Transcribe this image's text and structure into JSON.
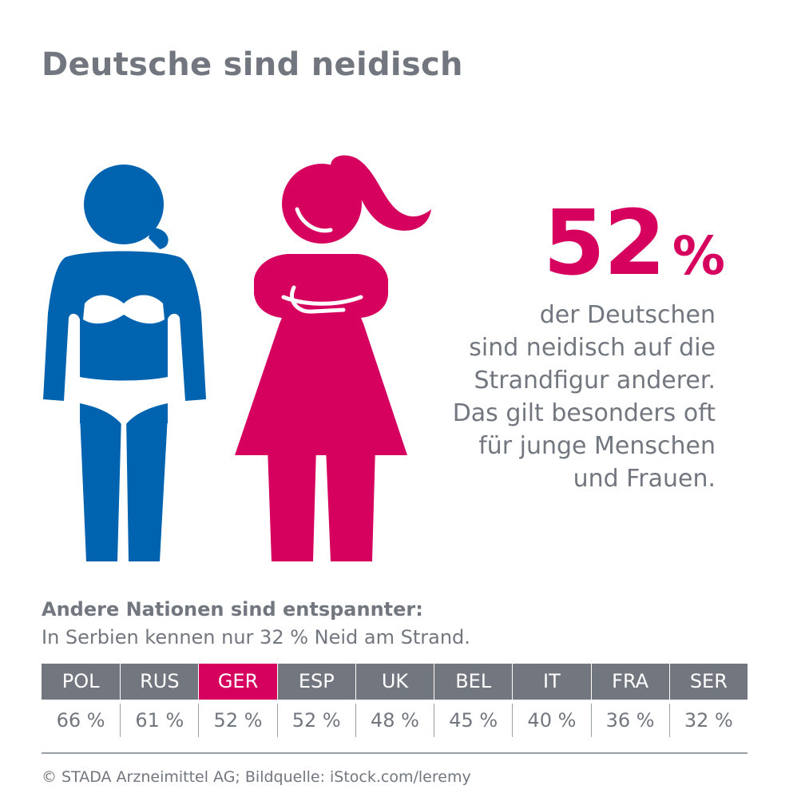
{
  "title": "Deutsche sind neidisch",
  "stat": {
    "value": "52",
    "unit": "%"
  },
  "description": [
    "der Deutschen",
    "sind neidisch auf die",
    "Strandfigur anderer.",
    "Das gilt besonders oft",
    "für junge Menschen",
    "und Frauen."
  ],
  "comparison": {
    "heading": "Andere Nationen sind entspannter:",
    "subheading": "In Serbien kennen nur 32 % Neid am Strand.",
    "nations": [
      {
        "code": "POL",
        "value": "66 %"
      },
      {
        "code": "RUS",
        "value": "61 %"
      },
      {
        "code": "GER",
        "value": "52 %"
      },
      {
        "code": "ESP",
        "value": "52 %"
      },
      {
        "code": "UK",
        "value": "48 %"
      },
      {
        "code": "BEL",
        "value": "45 %"
      },
      {
        "code": "IT",
        "value": "40 %"
      },
      {
        "code": "FRA",
        "value": "36 %"
      },
      {
        "code": "SER",
        "value": "32 %"
      }
    ],
    "highlight": "GER"
  },
  "credit": "© STADA Arzneimittel AG; Bildquelle: iStock.com/leremy",
  "colors": {
    "accent": "#d6005f",
    "figure_blue": "#0063b0",
    "text_gray": "#72777f"
  },
  "icons": [
    "woman-bikini-icon",
    "woman-arms-crossed-icon"
  ]
}
